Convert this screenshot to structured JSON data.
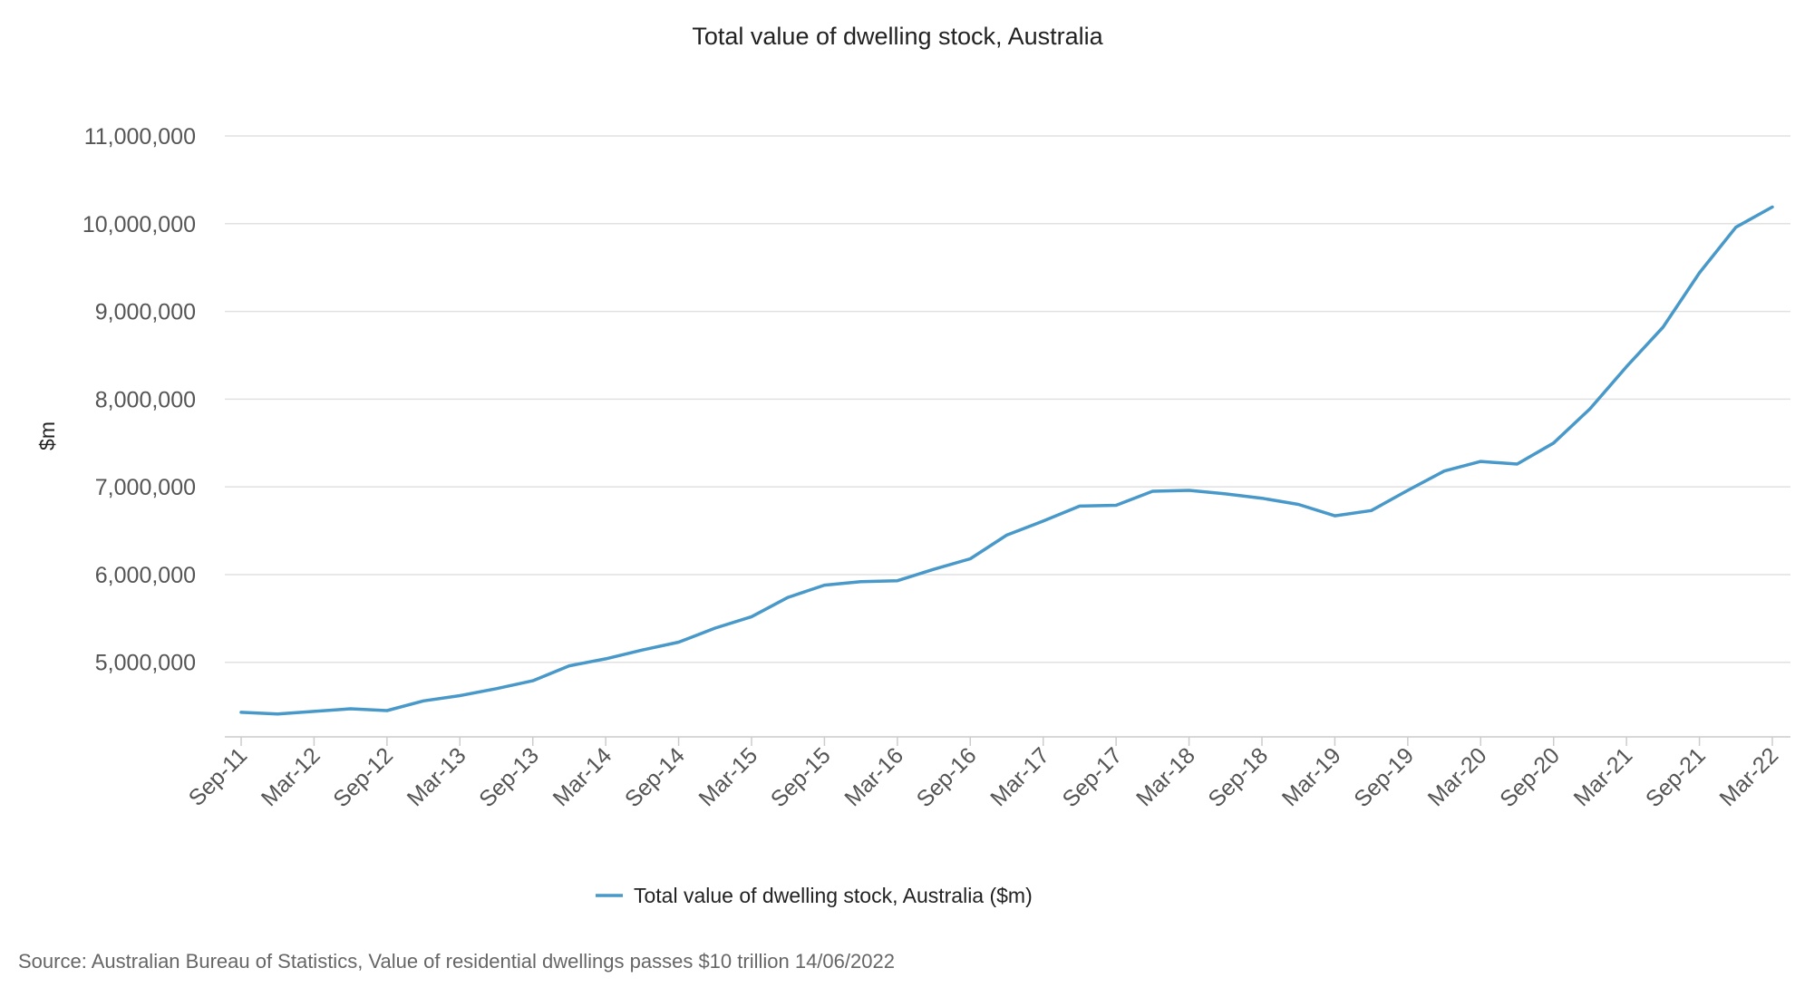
{
  "chart_data": {
    "type": "line",
    "title": "Total value of dwelling stock, Australia",
    "ylabel": "$m",
    "xlabel": "",
    "ylim": [
      4150000,
      11000000
    ],
    "yticks": [
      5000000,
      6000000,
      7000000,
      8000000,
      9000000,
      10000000,
      11000000
    ],
    "ytick_labels": [
      "5,000,000",
      "6,000,000",
      "7,000,000",
      "8,000,000",
      "9,000,000",
      "10,000,000",
      "11,000,000"
    ],
    "x": [
      "Sep-11",
      "Dec-11",
      "Mar-12",
      "Jun-12",
      "Sep-12",
      "Dec-12",
      "Mar-13",
      "Jun-13",
      "Sep-13",
      "Dec-13",
      "Mar-14",
      "Jun-14",
      "Sep-14",
      "Dec-14",
      "Mar-15",
      "Jun-15",
      "Sep-15",
      "Dec-15",
      "Mar-16",
      "Jun-16",
      "Sep-16",
      "Dec-16",
      "Mar-17",
      "Jun-17",
      "Sep-17",
      "Dec-17",
      "Mar-18",
      "Jun-18",
      "Sep-18",
      "Dec-18",
      "Mar-19",
      "Jun-19",
      "Sep-19",
      "Dec-19",
      "Mar-20",
      "Jun-20",
      "Sep-20",
      "Dec-20",
      "Mar-21",
      "Jun-21",
      "Sep-21",
      "Dec-21",
      "Mar-22"
    ],
    "xtick_labels": [
      "Sep-11",
      "Mar-12",
      "Sep-12",
      "Mar-13",
      "Sep-13",
      "Mar-14",
      "Sep-14",
      "Mar-15",
      "Sep-15",
      "Mar-16",
      "Sep-16",
      "Mar-17",
      "Sep-17",
      "Mar-18",
      "Sep-18",
      "Mar-19",
      "Sep-19",
      "Mar-20",
      "Sep-20",
      "Mar-21",
      "Sep-21",
      "Mar-22"
    ],
    "series": [
      {
        "name": "Total value of dwelling stock, Australia ($m)",
        "color": "#4899c9",
        "values": [
          4430000,
          4410000,
          4440000,
          4470000,
          4450000,
          4560000,
          4620000,
          4700000,
          4790000,
          4960000,
          5040000,
          5140000,
          5230000,
          5390000,
          5520000,
          5740000,
          5880000,
          5920000,
          5930000,
          6060000,
          6180000,
          6450000,
          6610000,
          6780000,
          6790000,
          6950000,
          6960000,
          6920000,
          6870000,
          6800000,
          6670000,
          6730000,
          6960000,
          7180000,
          7290000,
          7260000,
          7500000,
          7890000,
          8370000,
          8820000,
          9440000,
          9960000,
          10190000
        ]
      }
    ],
    "grid": "horizontal",
    "legend_position": "bottom-center"
  },
  "source": "Source: Australian Bureau of Statistics, Value of residential dwellings passes $10 trillion 14/06/2022"
}
